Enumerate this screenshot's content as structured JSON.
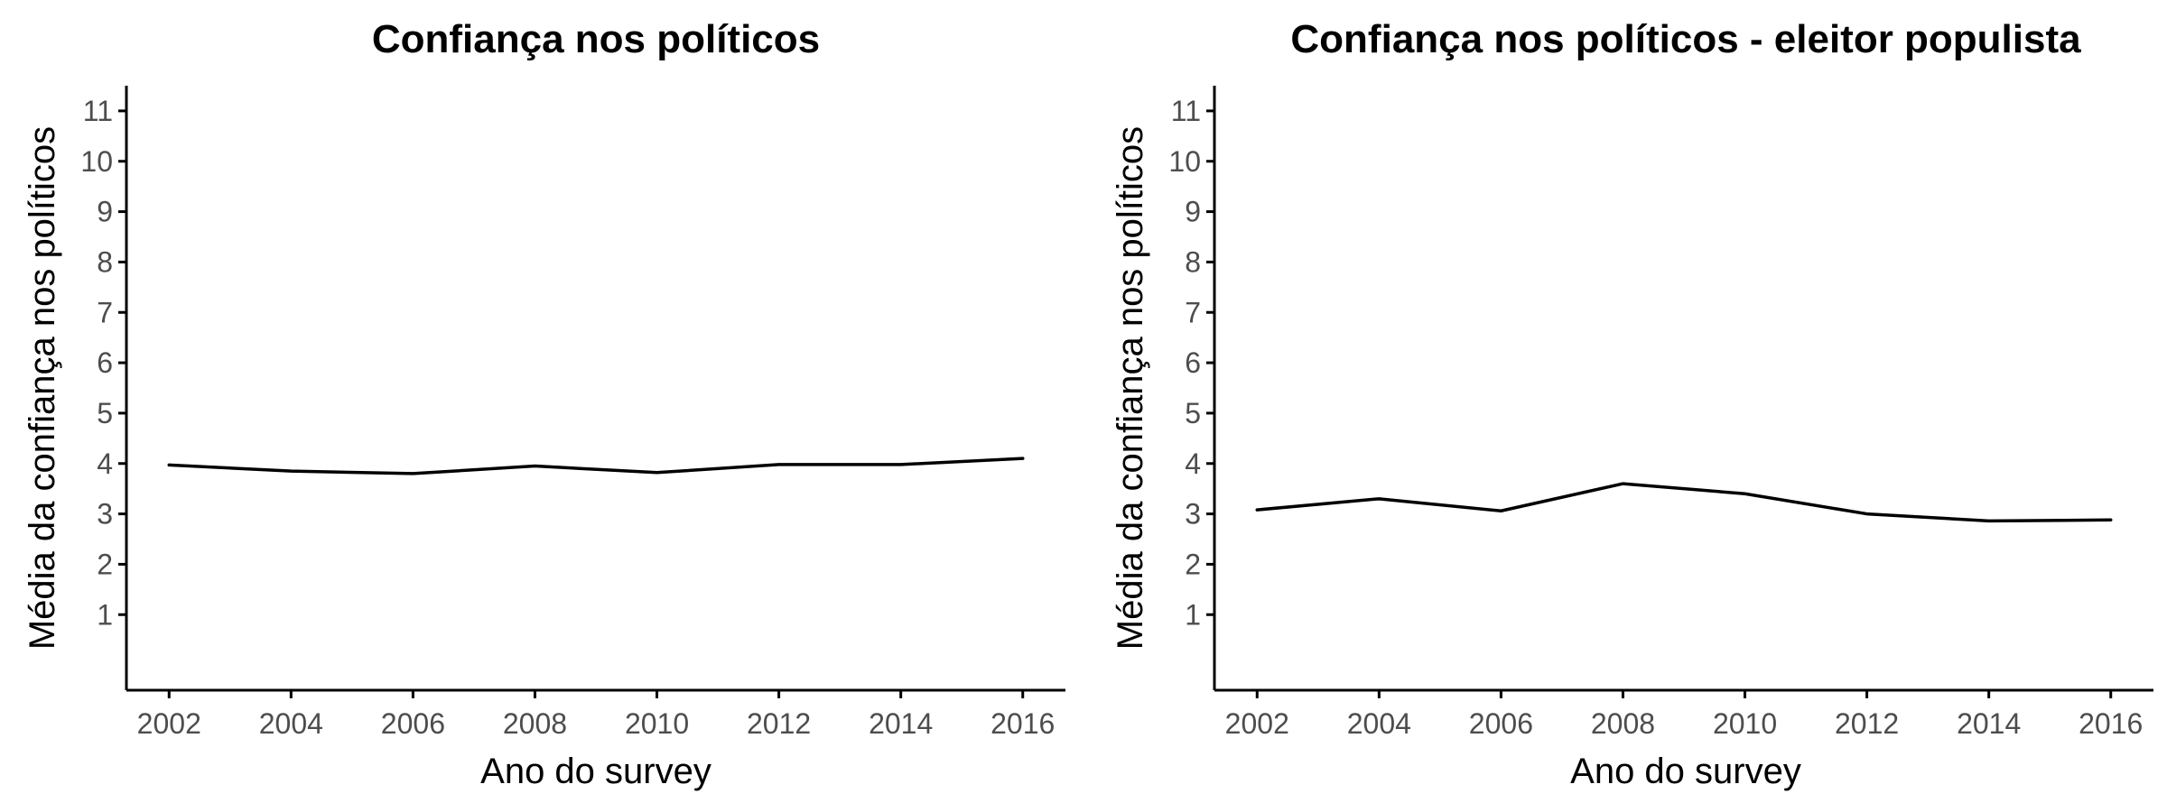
{
  "chart_data": [
    {
      "type": "line",
      "title": "Confiança nos políticos",
      "xlabel": "Ano do survey",
      "ylabel": "Média da confiança nos políticos",
      "x": [
        2002,
        2004,
        2006,
        2008,
        2010,
        2012,
        2014,
        2016
      ],
      "series": [
        {
          "values": [
            3.97,
            3.85,
            3.8,
            3.95,
            3.82,
            3.98,
            3.98,
            4.1
          ]
        }
      ],
      "xlim": [
        2001.3,
        2016.7
      ],
      "ylim": [
        -0.5,
        11.5
      ],
      "xticks": [
        "2002",
        "2004",
        "2006",
        "2008",
        "2010",
        "2012",
        "2014",
        "2016"
      ],
      "yticks": [
        "1",
        "2",
        "3",
        "4",
        "5",
        "6",
        "7",
        "8",
        "9",
        "10",
        "11"
      ],
      "grid": false,
      "legend": "none",
      "line_color": "#000000"
    },
    {
      "type": "line",
      "title": "Confiança nos políticos - eleitor populista",
      "xlabel": "Ano do survey",
      "ylabel": "Média da confiança nos políticos",
      "x": [
        2002,
        2004,
        2006,
        2008,
        2010,
        2012,
        2014,
        2016
      ],
      "series": [
        {
          "values": [
            3.08,
            3.3,
            3.06,
            3.6,
            3.4,
            3.0,
            2.86,
            2.88
          ]
        }
      ],
      "xlim": [
        2001.3,
        2016.7
      ],
      "ylim": [
        -0.5,
        11.5
      ],
      "xticks": [
        "2002",
        "2004",
        "2006",
        "2008",
        "2010",
        "2012",
        "2014",
        "2016"
      ],
      "yticks": [
        "1",
        "2",
        "3",
        "4",
        "5",
        "6",
        "7",
        "8",
        "9",
        "10",
        "11"
      ],
      "grid": false,
      "legend": "none",
      "line_color": "#000000"
    }
  ]
}
